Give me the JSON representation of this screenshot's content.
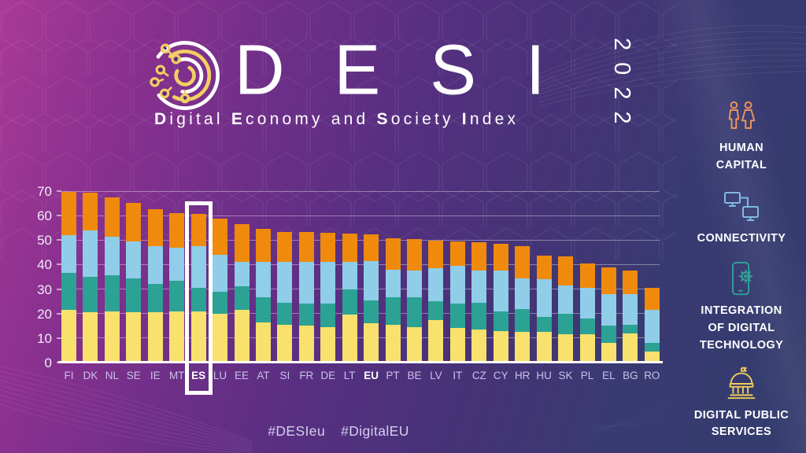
{
  "header": {
    "title": "DESI",
    "year": "2022",
    "subtitle": "Digital Economy and Society Index",
    "subtitle_segments": [
      {
        "text": "D",
        "bold": true
      },
      {
        "text": "igital ",
        "bold": false
      },
      {
        "text": "E",
        "bold": true
      },
      {
        "text": "conomy ",
        "bold": false
      },
      {
        "text": "and ",
        "bold": false
      },
      {
        "text": "S",
        "bold": true
      },
      {
        "text": "ociety ",
        "bold": false
      },
      {
        "text": "I",
        "bold": true
      },
      {
        "text": "ndex",
        "bold": false
      }
    ],
    "logo": "desi-fingerprint-logo"
  },
  "legend": [
    {
      "label": "HUMAN\nCAPITAL",
      "icon": "people-icon",
      "color": "#f0955b"
    },
    {
      "label": "CONNECTIVITY",
      "icon": "connected-monitors-icon",
      "color": "#7fb9e6"
    },
    {
      "label": "INTEGRATION\nOF DIGITAL\nTECHNOLOGY",
      "icon": "phone-gear-icon",
      "color": "#2fa79a"
    },
    {
      "label": "DIGITAL PUBLIC\nSERVICES",
      "icon": "government-building-icon",
      "color": "#efcb5a"
    }
  ],
  "chart_data": {
    "type": "bar",
    "stacked": true,
    "title": "Digital Economy and Society Index 2022",
    "ylim": [
      0,
      70
    ],
    "yticks": [
      0,
      10,
      20,
      30,
      40,
      50,
      60,
      70
    ],
    "grid": true,
    "categories": [
      "FI",
      "DK",
      "NL",
      "SE",
      "IE",
      "MT",
      "ES",
      "LU",
      "EE",
      "AT",
      "SI",
      "FR",
      "DE",
      "LT",
      "EU",
      "PT",
      "BE",
      "LV",
      "IT",
      "CZ",
      "CY",
      "HR",
      "HU",
      "SK",
      "PL",
      "EL",
      "BG",
      "RO"
    ],
    "bold_category": "EU",
    "highlight_category": "ES",
    "series": [
      {
        "name": "Digital public services",
        "color": "#f8e16c",
        "values": [
          21.5,
          20.5,
          21.0,
          20.5,
          20.5,
          21.0,
          21.0,
          20.0,
          21.5,
          16.5,
          15.5,
          15.0,
          14.5,
          19.5,
          16.0,
          15.5,
          14.5,
          17.5,
          14.0,
          13.5,
          13.0,
          12.5,
          12.5,
          11.5,
          11.5,
          8.0,
          12.0,
          4.5
        ]
      },
      {
        "name": "Integration of digital technology",
        "color": "#2ca295",
        "values": [
          15.0,
          14.5,
          14.5,
          14.0,
          11.5,
          12.5,
          9.5,
          9.0,
          9.5,
          10.0,
          9.0,
          9.0,
          9.5,
          10.5,
          9.5,
          11.0,
          12.0,
          7.5,
          10.0,
          11.0,
          8.0,
          9.5,
          6.0,
          8.5,
          6.5,
          7.0,
          3.5,
          3.5
        ]
      },
      {
        "name": "Connectivity",
        "color": "#8fcde8",
        "values": [
          15.5,
          19.0,
          16.0,
          15.0,
          15.5,
          13.5,
          17.0,
          15.0,
          10.0,
          14.5,
          16.5,
          17.0,
          17.0,
          11.0,
          16.0,
          11.5,
          11.0,
          13.5,
          15.5,
          13.0,
          16.5,
          12.5,
          15.5,
          11.5,
          12.5,
          13.0,
          12.5,
          13.5
        ]
      },
      {
        "name": "Human capital",
        "color": "#ef8a0c",
        "values": [
          17.6,
          15.3,
          15.9,
          15.7,
          15.2,
          13.9,
          13.3,
          14.9,
          15.5,
          13.7,
          12.4,
          12.3,
          11.9,
          11.7,
          10.8,
          12.8,
          12.8,
          11.2,
          9.8,
          11.6,
          10.9,
          13.0,
          9.8,
          11.9,
          10.0,
          10.9,
          9.7,
          9.1
        ]
      }
    ],
    "totals": [
      69.6,
      69.3,
      67.4,
      65.2,
      62.7,
      60.9,
      60.8,
      58.9,
      56.5,
      54.7,
      53.4,
      53.3,
      52.9,
      52.7,
      52.3,
      50.8,
      50.3,
      49.7,
      49.3,
      49.1,
      48.4,
      47.5,
      43.8,
      43.4,
      40.5,
      38.9,
      37.7,
      30.6
    ]
  },
  "footer": {
    "hashtags": [
      "#DESIeu",
      "#DigitalEU"
    ]
  },
  "colors": {
    "background_left": "#aa3a97",
    "background_right": "#333c6e",
    "bar_dps": "#f8e16c",
    "bar_idt": "#2ca295",
    "bar_conn": "#8fcde8",
    "bar_hc": "#ef8a0c",
    "highlight_box": "#ffffff"
  }
}
